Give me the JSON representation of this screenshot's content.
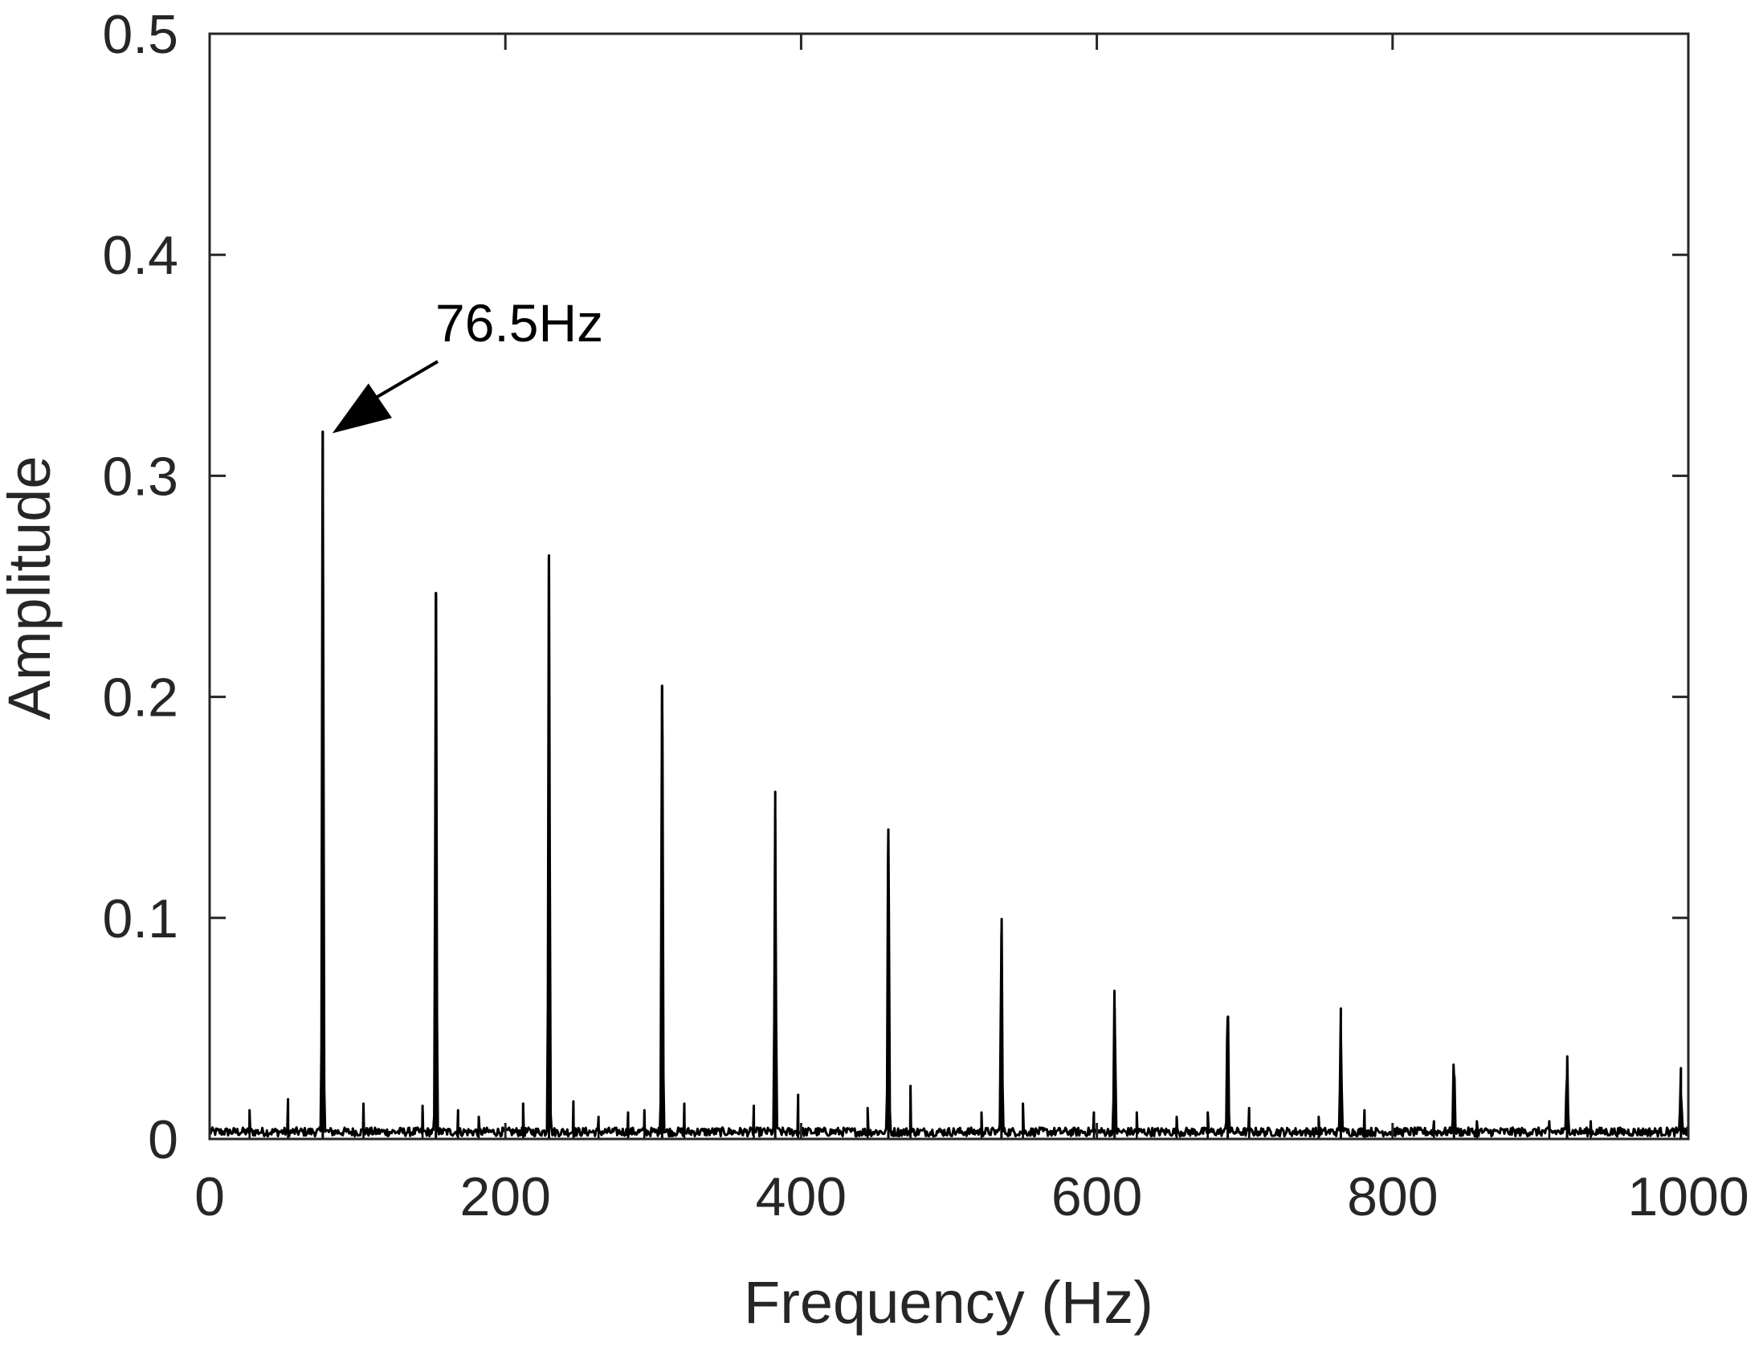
{
  "chart_data": {
    "type": "line",
    "title": "",
    "xlabel": "Frequency (Hz)",
    "ylabel": "Amplitude",
    "xlim": [
      0,
      1000
    ],
    "ylim": [
      0,
      0.5
    ],
    "x_ticks": [
      0,
      200,
      400,
      600,
      800,
      1000
    ],
    "x_tick_labels": [
      "0",
      "200",
      "400",
      "600",
      "800",
      "1000"
    ],
    "y_ticks": [
      0,
      0.1,
      0.2,
      0.3,
      0.4,
      0.5
    ],
    "y_tick_labels": [
      "0",
      "0.1",
      "0.2",
      "0.3",
      "0.4",
      "0.5"
    ],
    "grid": false,
    "legend": "none",
    "line_color": "#000000",
    "axis_color": "#262626",
    "series": [
      {
        "peaks": [
          {
            "x": 76.5,
            "y": 0.32
          },
          {
            "x": 153,
            "y": 0.247
          },
          {
            "x": 229.5,
            "y": 0.264
          },
          {
            "x": 306,
            "y": 0.205
          },
          {
            "x": 382.5,
            "y": 0.145
          },
          {
            "x": 459,
            "y": 0.14
          },
          {
            "x": 535.5,
            "y": 0.093
          },
          {
            "x": 612,
            "y": 0.059
          },
          {
            "x": 688.5,
            "y": 0.055
          },
          {
            "x": 765,
            "y": 0.047
          },
          {
            "x": 841.5,
            "y": 0.029
          },
          {
            "x": 918,
            "y": 0.028
          },
          {
            "x": 995,
            "y": 0.02
          }
        ],
        "minor_peaks": [
          {
            "x": 27,
            "y": 0.013
          },
          {
            "x": 53,
            "y": 0.018
          },
          {
            "x": 104,
            "y": 0.016
          },
          {
            "x": 144,
            "y": 0.015
          },
          {
            "x": 168,
            "y": 0.013
          },
          {
            "x": 182,
            "y": 0.01
          },
          {
            "x": 212,
            "y": 0.016
          },
          {
            "x": 246,
            "y": 0.017
          },
          {
            "x": 263,
            "y": 0.01
          },
          {
            "x": 283,
            "y": 0.012
          },
          {
            "x": 294,
            "y": 0.013
          },
          {
            "x": 321,
            "y": 0.016
          },
          {
            "x": 368,
            "y": 0.015
          },
          {
            "x": 398,
            "y": 0.02
          },
          {
            "x": 445,
            "y": 0.014
          },
          {
            "x": 474,
            "y": 0.024
          },
          {
            "x": 522,
            "y": 0.012
          },
          {
            "x": 550,
            "y": 0.016
          },
          {
            "x": 598,
            "y": 0.012
          },
          {
            "x": 627,
            "y": 0.012
          },
          {
            "x": 654,
            "y": 0.01
          },
          {
            "x": 675,
            "y": 0.012
          },
          {
            "x": 703,
            "y": 0.014
          },
          {
            "x": 750,
            "y": 0.01
          },
          {
            "x": 781,
            "y": 0.013
          },
          {
            "x": 828,
            "y": 0.008
          },
          {
            "x": 857,
            "y": 0.008
          },
          {
            "x": 906,
            "y": 0.008
          },
          {
            "x": 934,
            "y": 0.008
          }
        ]
      }
    ],
    "annotations": [
      {
        "text": "76.5Hz",
        "points_to": {
          "x": 76.5,
          "y": 0.32
        }
      }
    ]
  }
}
